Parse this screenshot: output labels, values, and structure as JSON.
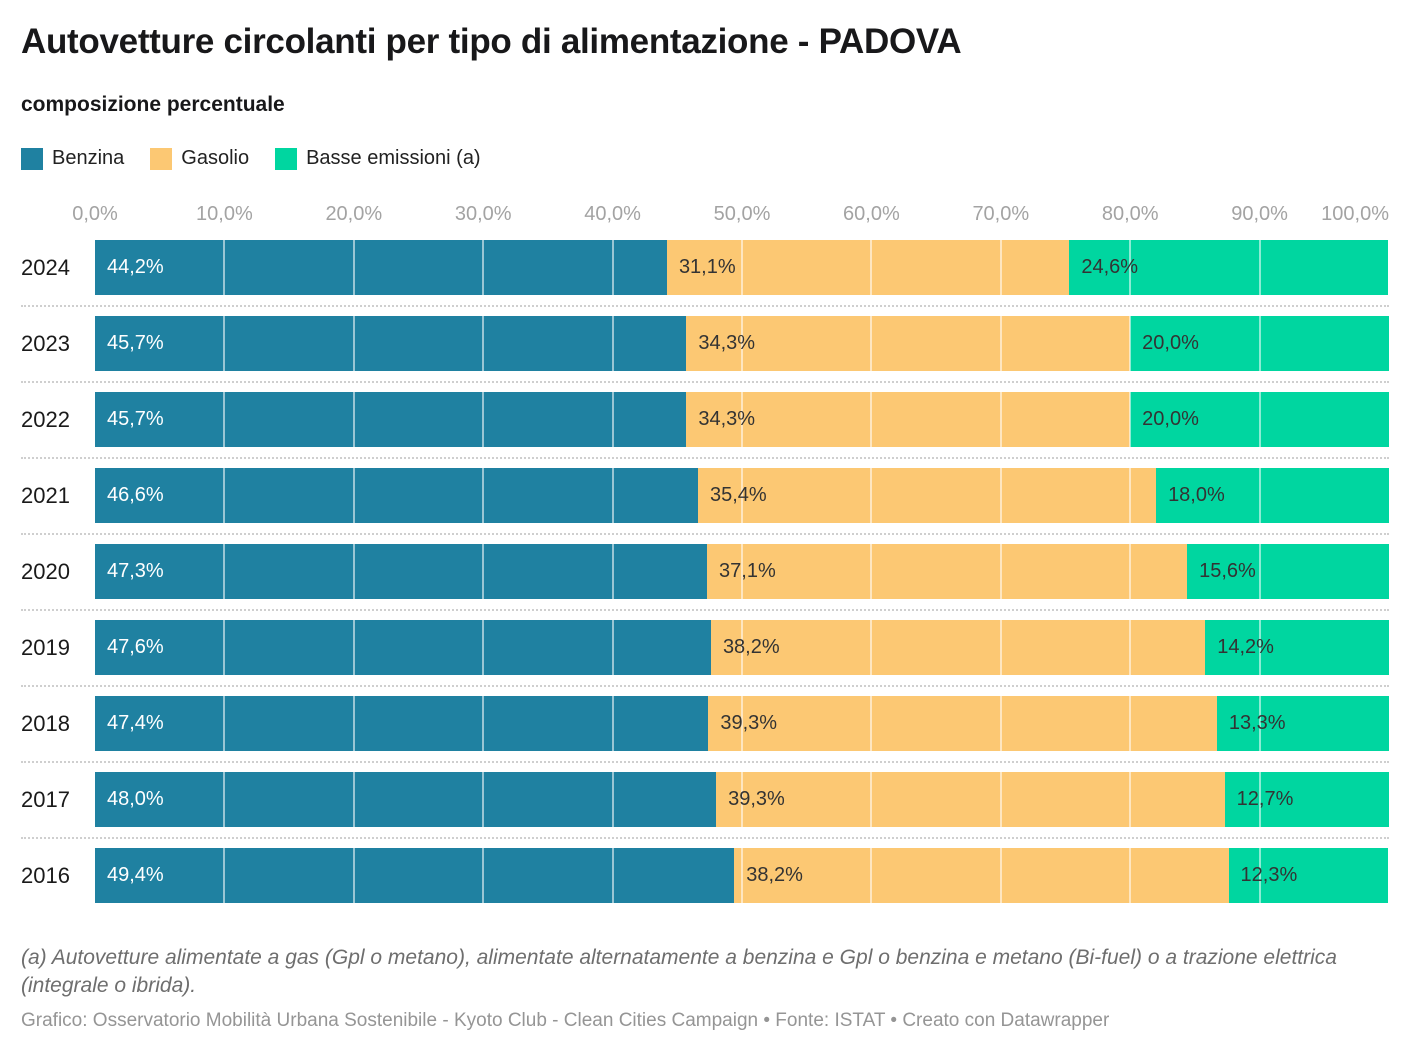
{
  "header": {
    "title": "Autovetture circolanti per tipo di alimentazione - PADOVA",
    "subtitle": "composizione percentuale"
  },
  "legend": [
    {
      "label": "Benzina",
      "color": "#1f81a1"
    },
    {
      "label": "Gasolio",
      "color": "#fcc873"
    },
    {
      "label": "Basse emissioni (a)",
      "color": "#00d6a0"
    }
  ],
  "chart_data": {
    "type": "bar",
    "stacked": true,
    "orientation": "horizontal",
    "title": "Autovetture circolanti per tipo di alimentazione - PADOVA",
    "subtitle": "composizione percentuale",
    "xlim": [
      0,
      100
    ],
    "grid": true,
    "gridline_values": [
      10,
      20,
      30,
      40,
      50,
      60,
      70,
      80,
      90
    ],
    "x_ticks": [
      {
        "label": "0,0%",
        "value": 0
      },
      {
        "label": "10,0%",
        "value": 10
      },
      {
        "label": "20,0%",
        "value": 20
      },
      {
        "label": "30,0%",
        "value": 30
      },
      {
        "label": "40,0%",
        "value": 40
      },
      {
        "label": "50,0%",
        "value": 50
      },
      {
        "label": "60,0%",
        "value": 60
      },
      {
        "label": "70,0%",
        "value": 70
      },
      {
        "label": "80,0%",
        "value": 80
      },
      {
        "label": "90,0%",
        "value": 90
      },
      {
        "label": "100,0%",
        "value": 100
      }
    ],
    "categories": [
      "2024",
      "2023",
      "2022",
      "2021",
      "2020",
      "2019",
      "2018",
      "2017",
      "2016"
    ],
    "series": [
      {
        "name": "Benzina",
        "color": "#1f81a1",
        "label_color": "#ffffff",
        "values": [
          44.2,
          45.7,
          45.7,
          46.6,
          47.3,
          47.6,
          47.4,
          48.0,
          49.4
        ],
        "labels": [
          "44,2%",
          "45,7%",
          "45,7%",
          "46,6%",
          "47,3%",
          "47,6%",
          "47,4%",
          "48,0%",
          "49,4%"
        ]
      },
      {
        "name": "Gasolio",
        "color": "#fcc873",
        "label_color": "#333333",
        "values": [
          31.1,
          34.3,
          34.3,
          35.4,
          37.1,
          38.2,
          39.3,
          39.3,
          38.2
        ],
        "labels": [
          "31,1%",
          "34,3%",
          "34,3%",
          "35,4%",
          "37,1%",
          "38,2%",
          "39,3%",
          "39,3%",
          "38,2%"
        ]
      },
      {
        "name": "Basse emissioni (a)",
        "color": "#00d6a0",
        "label_color": "#333333",
        "values": [
          24.6,
          20.0,
          20.0,
          18.0,
          15.6,
          14.2,
          13.3,
          12.7,
          12.3
        ],
        "labels": [
          "24,6%",
          "20,0%",
          "20,0%",
          "18,0%",
          "15,6%",
          "14,2%",
          "13,3%",
          "12,7%",
          "12,3%"
        ]
      }
    ]
  },
  "footer": {
    "note": "(a) Autovetture alimentate a gas (Gpl o metano), alimentate alternatamente a benzina e Gpl o benzina e metano (Bi-fuel) o a trazione elettrica (integrale o ibrida).",
    "credit": "Grafico: Osservatorio Mobilità Urbana Sostenibile - Kyoto Club - Clean Cities Campaign • Fonte: ISTAT • Creato con Datawrapper"
  }
}
